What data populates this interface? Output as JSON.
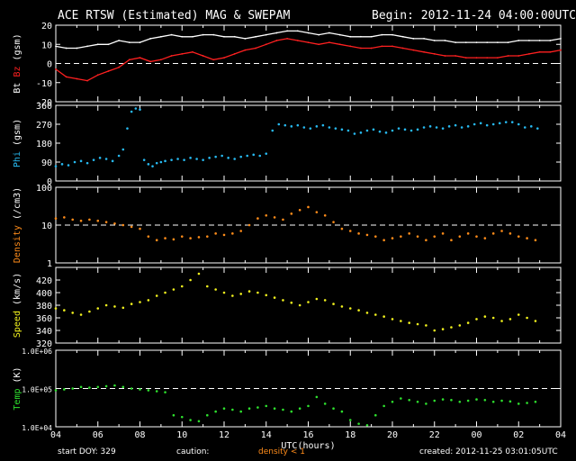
{
  "header": {
    "title": "ACE RTSW (Estimated) MAG & SWEPAM",
    "begin": "Begin: 2012-11-24 04:00:00UTC"
  },
  "footer": {
    "start_doy": "start DOY: 329",
    "caution": "caution:",
    "density_note": "density < 1",
    "created": "created: 2012-11-25 03:01:05UTC"
  },
  "colors": {
    "background": "#000000",
    "axes": "#ffffff",
    "bt": "#ffffff",
    "bz": "#ff2020",
    "phi": "#27b9f0",
    "density": "#ff8c1a",
    "speed": "#f2f21e",
    "temp": "#2ee02e",
    "caution": "#ff8c1a"
  },
  "chart_data": [
    {
      "type": "line",
      "panel": "mag",
      "ylabel": [
        "Bt",
        "Bz",
        "(gsm)"
      ],
      "ylim": [
        -20,
        20
      ],
      "yticks": [
        -20,
        -10,
        0,
        10,
        20
      ],
      "reference_line": 0,
      "series": [
        {
          "name": "Bt",
          "color": "#ffffff",
          "x": [
            0,
            0.5,
            1,
            1.5,
            2,
            2.5,
            3,
            3.5,
            4,
            4.5,
            5,
            5.5,
            6,
            6.5,
            7,
            7.5,
            8,
            8.5,
            9,
            9.5,
            10,
            10.5,
            11,
            11.5,
            12,
            12.5,
            13,
            13.5,
            14,
            14.5,
            15,
            15.5,
            16,
            16.5,
            17,
            17.5,
            18,
            18.5,
            19,
            19.5,
            20,
            20.5,
            21,
            21.5,
            22,
            22.5,
            23,
            23.5,
            24
          ],
          "values": [
            9,
            8,
            8,
            9,
            10,
            10,
            12,
            11,
            11,
            13,
            14,
            15,
            14,
            14,
            15,
            15,
            14,
            14,
            13,
            14,
            15,
            16,
            17,
            17,
            16,
            15,
            16,
            15,
            14,
            14,
            14,
            15,
            15,
            14,
            13,
            13,
            12,
            12,
            11,
            11,
            11,
            11,
            11,
            11,
            12,
            12,
            12,
            12,
            13
          ]
        },
        {
          "name": "Bz",
          "color": "#ff2020",
          "x": [
            0,
            0.5,
            1,
            1.5,
            2,
            2.5,
            3,
            3.5,
            4,
            4.5,
            5,
            5.5,
            6,
            6.5,
            7,
            7.5,
            8,
            8.5,
            9,
            9.5,
            10,
            10.5,
            11,
            11.5,
            12,
            12.5,
            13,
            13.5,
            14,
            14.5,
            15,
            15.5,
            16,
            16.5,
            17,
            17.5,
            18,
            18.5,
            19,
            19.5,
            20,
            20.5,
            21,
            21.5,
            22,
            22.5,
            23,
            23.5,
            24
          ],
          "values": [
            -3,
            -7,
            -8,
            -9,
            -6,
            -4,
            -2,
            2,
            3,
            1,
            2,
            4,
            5,
            6,
            4,
            2,
            3,
            5,
            7,
            8,
            10,
            12,
            13,
            12,
            11,
            10,
            11,
            10,
            9,
            8,
            8,
            9,
            9,
            8,
            7,
            6,
            5,
            4,
            4,
            3,
            3,
            3,
            3,
            4,
            4,
            5,
            6,
            6,
            7
          ]
        }
      ]
    },
    {
      "type": "scatter",
      "panel": "phi",
      "ylabel": [
        "Phi",
        "(gsm)"
      ],
      "ylim": [
        0,
        360
      ],
      "yticks": [
        0,
        90,
        180,
        270,
        360
      ],
      "series": [
        {
          "name": "Phi",
          "color": "#27b9f0",
          "x": [
            0,
            0.3,
            0.6,
            0.9,
            1.2,
            1.5,
            1.8,
            2.1,
            2.4,
            2.7,
            3.0,
            3.2,
            3.4,
            3.6,
            3.8,
            4.0,
            4.2,
            4.4,
            4.6,
            4.8,
            5.0,
            5.2,
            5.5,
            5.8,
            6.1,
            6.4,
            6.7,
            7.0,
            7.3,
            7.6,
            7.9,
            8.2,
            8.5,
            8.8,
            9.1,
            9.4,
            9.7,
            10.0,
            10.3,
            10.6,
            10.9,
            11.2,
            11.5,
            11.8,
            12.1,
            12.4,
            12.7,
            13.0,
            13.3,
            13.6,
            13.9,
            14.2,
            14.5,
            14.8,
            15.1,
            15.4,
            15.7,
            16.0,
            16.3,
            16.6,
            16.9,
            17.2,
            17.5,
            17.8,
            18.1,
            18.4,
            18.7,
            19.0,
            19.3,
            19.6,
            19.9,
            20.2,
            20.5,
            20.8,
            21.1,
            21.4,
            21.7,
            22.0,
            22.3,
            22.6,
            22.9
          ],
          "values": [
            70,
            80,
            75,
            90,
            95,
            85,
            100,
            110,
            105,
            95,
            120,
            150,
            250,
            330,
            345,
            340,
            100,
            80,
            70,
            85,
            90,
            95,
            100,
            105,
            100,
            110,
            105,
            100,
            110,
            115,
            120,
            110,
            105,
            115,
            120,
            125,
            120,
            130,
            240,
            270,
            265,
            260,
            265,
            255,
            250,
            260,
            265,
            255,
            250,
            245,
            240,
            225,
            230,
            240,
            245,
            235,
            230,
            240,
            250,
            245,
            240,
            245,
            255,
            260,
            255,
            250,
            260,
            265,
            255,
            260,
            270,
            275,
            265,
            270,
            275,
            280,
            280,
            270,
            255,
            260,
            250
          ]
        }
      ]
    },
    {
      "type": "scatter",
      "panel": "density",
      "ylabel": [
        "Density",
        "(/cm3)"
      ],
      "yscale": "log",
      "ylim": [
        1,
        100
      ],
      "yticks": [
        1,
        10,
        100
      ],
      "reference_line": 10,
      "series": [
        {
          "name": "Density",
          "color": "#ff8c1a",
          "x": [
            0,
            0.4,
            0.8,
            1.2,
            1.6,
            2.0,
            2.4,
            2.8,
            3.2,
            3.6,
            4.0,
            4.4,
            4.8,
            5.2,
            5.6,
            6.0,
            6.4,
            6.8,
            7.2,
            7.6,
            8.0,
            8.4,
            8.8,
            9.2,
            9.6,
            10.0,
            10.4,
            10.8,
            11.2,
            11.6,
            12.0,
            12.4,
            12.8,
            13.2,
            13.6,
            14.0,
            14.4,
            14.8,
            15.2,
            15.6,
            16.0,
            16.4,
            16.8,
            17.2,
            17.6,
            18.0,
            18.4,
            18.8,
            19.2,
            19.6,
            20.0,
            20.4,
            20.8,
            21.2,
            21.6,
            22.0,
            22.4,
            22.8
          ],
          "values": [
            15,
            16,
            14,
            13,
            14,
            13,
            12,
            11,
            10,
            9,
            8,
            5,
            4,
            4.5,
            4.2,
            5,
            4.5,
            4.8,
            5,
            6,
            5.5,
            6,
            7,
            10,
            15,
            18,
            16,
            14,
            20,
            25,
            30,
            22,
            18,
            12,
            8,
            7,
            6,
            5.5,
            5,
            4,
            4.5,
            5,
            6,
            5,
            4,
            5,
            6,
            4,
            5,
            6,
            5,
            4.5,
            6,
            7,
            6,
            5,
            4.5,
            4
          ]
        }
      ]
    },
    {
      "type": "scatter",
      "panel": "speed",
      "ylabel": [
        "Speed",
        "(km/s)"
      ],
      "ylim": [
        320,
        440
      ],
      "yticks": [
        320,
        340,
        360,
        380,
        400,
        420
      ],
      "series": [
        {
          "name": "Speed",
          "color": "#f2f21e",
          "x": [
            0,
            0.4,
            0.8,
            1.2,
            1.6,
            2.0,
            2.4,
            2.8,
            3.2,
            3.6,
            4.0,
            4.4,
            4.8,
            5.2,
            5.6,
            6.0,
            6.4,
            6.8,
            7.2,
            7.6,
            8.0,
            8.4,
            8.8,
            9.2,
            9.6,
            10.0,
            10.4,
            10.8,
            11.2,
            11.6,
            12.0,
            12.4,
            12.8,
            13.2,
            13.6,
            14.0,
            14.4,
            14.8,
            15.2,
            15.6,
            16.0,
            16.4,
            16.8,
            17.2,
            17.6,
            18.0,
            18.4,
            18.8,
            19.2,
            19.6,
            20.0,
            20.4,
            20.8,
            21.2,
            21.6,
            22.0,
            22.4,
            22.8
          ],
          "values": [
            375,
            372,
            368,
            365,
            370,
            375,
            380,
            378,
            376,
            382,
            385,
            388,
            395,
            400,
            405,
            410,
            420,
            430,
            410,
            405,
            400,
            395,
            398,
            402,
            400,
            396,
            392,
            388,
            384,
            380,
            385,
            390,
            388,
            382,
            378,
            375,
            372,
            368,
            365,
            362,
            358,
            355,
            352,
            350,
            348,
            340,
            342,
            345,
            348,
            352,
            358,
            362,
            360,
            355,
            358,
            365,
            360,
            355
          ]
        }
      ]
    },
    {
      "type": "scatter",
      "panel": "temp",
      "ylabel": [
        "Temp",
        "(K)"
      ],
      "yscale": "log",
      "ylim": [
        10000,
        1000000
      ],
      "yticks": [
        10000,
        100000,
        1000000
      ],
      "ytick_labels": [
        "1.0E+04",
        "1.0E+05",
        "1.0E+06"
      ],
      "reference_line": 100000,
      "xlabel": "UTC(hours)",
      "xticks": [
        "04",
        "06",
        "08",
        "10",
        "12",
        "14",
        "16",
        "18",
        "20",
        "22",
        "00",
        "02",
        "04"
      ],
      "series": [
        {
          "name": "Temp",
          "color": "#2ee02e",
          "x": [
            0,
            0.4,
            0.8,
            1.2,
            1.6,
            2.0,
            2.4,
            2.8,
            3.2,
            3.6,
            4.0,
            4.4,
            4.8,
            5.2,
            5.6,
            6.0,
            6.4,
            6.8,
            7.2,
            7.6,
            8.0,
            8.4,
            8.8,
            9.2,
            9.6,
            10.0,
            10.4,
            10.8,
            11.2,
            11.6,
            12.0,
            12.4,
            12.8,
            13.2,
            13.6,
            14.0,
            14.4,
            14.8,
            15.2,
            15.6,
            16.0,
            16.4,
            16.8,
            17.2,
            17.6,
            18.0,
            18.4,
            18.8,
            19.2,
            19.6,
            20.0,
            20.4,
            20.8,
            21.2,
            21.6,
            22.0,
            22.4,
            22.8
          ],
          "values": [
            90000,
            95000,
            100000,
            110000,
            105000,
            110000,
            115000,
            120000,
            110000,
            100000,
            95000,
            90000,
            85000,
            80000,
            20000,
            18000,
            15000,
            14000,
            20000,
            25000,
            30000,
            28000,
            25000,
            30000,
            32000,
            35000,
            30000,
            28000,
            25000,
            30000,
            35000,
            60000,
            40000,
            30000,
            25000,
            15000,
            12000,
            11000,
            20000,
            35000,
            45000,
            55000,
            50000,
            45000,
            40000,
            48000,
            52000,
            50000,
            45000,
            48000,
            52000,
            50000,
            45000,
            48000,
            46000,
            40000,
            42000,
            45000
          ]
        }
      ]
    }
  ]
}
